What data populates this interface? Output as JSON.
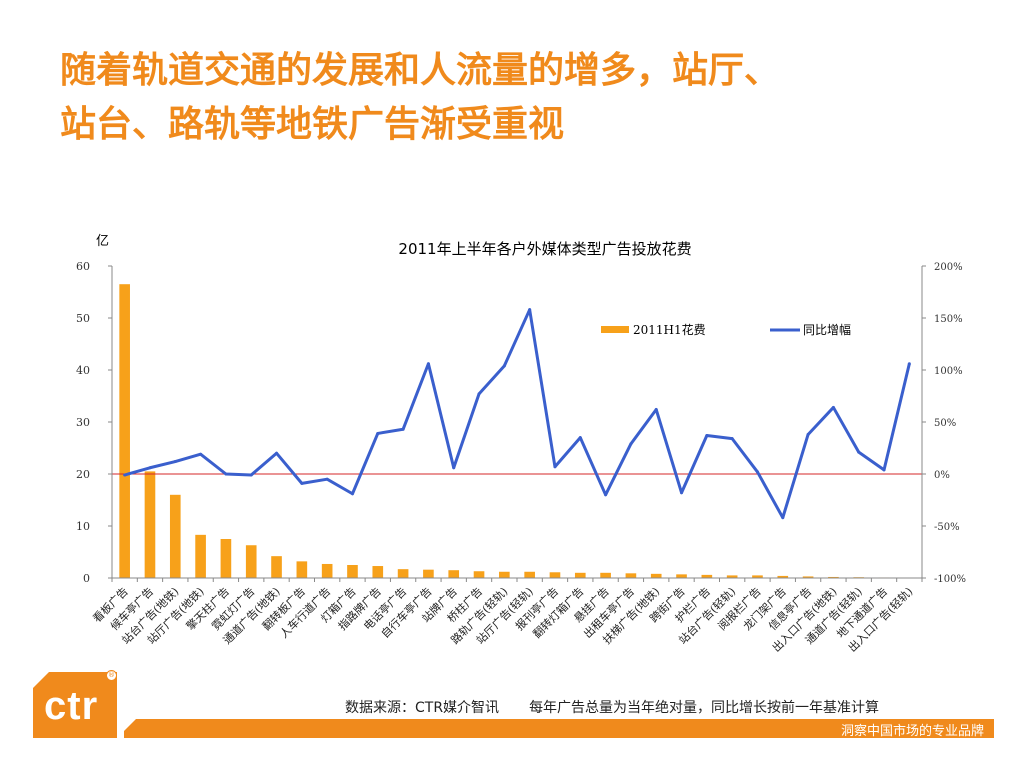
{
  "slide": {
    "title_lines": [
      "随着轨道交通的发展和人流量的增多，站厅、",
      "站台、路轨等地铁广告渐受重视"
    ],
    "source": "数据来源：CTR媒介智讯",
    "note": "每年广告总量为当年绝对量，同比增长按前一年基准计算",
    "logo_text": "ctr",
    "logo_mark": "®",
    "tagline": "洞察中国市场的专业品牌"
  },
  "colors": {
    "accent": "#f08a1c",
    "bar": "#f7a11a",
    "line": "#3a5fcd",
    "baseline": "#d62728"
  },
  "chart_data": {
    "type": "bar+line",
    "title": "2011年上半年各户外媒体类型广告投放花费",
    "ylabel": "亿",
    "ylim": [
      0,
      60
    ],
    "yticks": [
      0,
      10,
      20,
      30,
      40,
      50,
      60
    ],
    "y2lim": [
      -100,
      200
    ],
    "y2ticks": [
      -100,
      -50,
      0,
      50,
      100,
      150,
      200
    ],
    "y2tick_labels": [
      "-100%",
      "-50%",
      "0%",
      "50%",
      "100%",
      "150%",
      "200%"
    ],
    "legend_position": "top-right",
    "categories": [
      "看板广告",
      "候车亭广告",
      "站台广告(地铁)",
      "站厅广告(地铁)",
      "擎天柱广告",
      "霓虹灯广告",
      "通道广告(地铁)",
      "翻转板广告",
      "人车行道广告",
      "灯箱广告",
      "指路牌广告",
      "电话亭广告",
      "自行车亭广告",
      "站牌广告",
      "桥柱广告",
      "路轨广告(轻轨)",
      "站厅广告(轻轨)",
      "报刊亭广告",
      "翻转灯箱广告",
      "悬挂广告",
      "出租车亭广告",
      "扶梯广告(地铁)",
      "跨街广告",
      "护栏广告",
      "站台广告(轻轨)",
      "阅报栏广告",
      "龙门架广告",
      "信息亭广告",
      "出入口广告(地铁)",
      "通道广告(轻轨)",
      "地下通道广告",
      "出入口广告(轻轨)"
    ],
    "series": [
      {
        "name": "2011H1花费",
        "kind": "bar",
        "axis": "left",
        "values": [
          56.5,
          20.5,
          16.0,
          8.3,
          7.5,
          6.3,
          4.2,
          3.2,
          2.7,
          2.5,
          2.3,
          1.7,
          1.6,
          1.5,
          1.3,
          1.2,
          1.2,
          1.1,
          1.0,
          1.0,
          0.9,
          0.8,
          0.7,
          0.6,
          0.5,
          0.5,
          0.4,
          0.3,
          0.2,
          0.15,
          0.1,
          0.05
        ]
      },
      {
        "name": "同比增幅",
        "kind": "line",
        "axis": "right",
        "values": [
          -1,
          6,
          12,
          19,
          0,
          -1,
          20,
          -9,
          -5,
          -19,
          39,
          43,
          106,
          6,
          77,
          104,
          158,
          7,
          35,
          -20,
          29,
          62,
          -18,
          37,
          34,
          2,
          -42,
          38,
          64,
          21,
          4,
          106
        ]
      }
    ]
  }
}
